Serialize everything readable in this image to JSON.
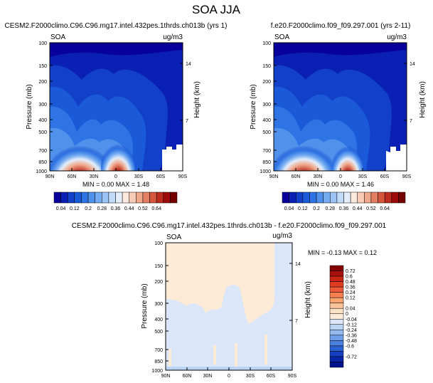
{
  "chart_data": {
    "type": "heatmap",
    "title": "SOA JJA",
    "colorbar_main": {
      "colors": [
        "#08009a",
        "#0a1fb4",
        "#1240c8",
        "#1a5ad8",
        "#2f74e4",
        "#5091ec",
        "#74abf1",
        "#9bc3f5",
        "#c2dbf8",
        "#e4eefa",
        "#fbe9de",
        "#f8cbb6",
        "#f0a88c",
        "#e37f62",
        "#d4563d",
        "#bd2d1f",
        "#9c0a0a",
        "#740000"
      ],
      "labels": [
        "0.04",
        "0.12",
        "0.2",
        "0.28",
        "0.36",
        "0.44",
        "0.52",
        "0.64"
      ]
    },
    "colorbar_diff": {
      "colors": [
        "#830000",
        "#a8100b",
        "#c82515",
        "#df3d22",
        "#ee5a37",
        "#f6804f",
        "#f9a36e",
        "#fbc39a",
        "#fde2c8",
        "#fdebd8",
        "#dbe7f8",
        "#bad4f3",
        "#95bbee",
        "#6f9fe8",
        "#4b80df",
        "#2b61d3",
        "#1440c0",
        "#0825a8",
        "#00138e"
      ],
      "labels": [
        "0.72",
        "0.6",
        "0.48",
        "0.36",
        "0.24",
        "0.12",
        "0.04",
        "0",
        "-0.04",
        "-0.12",
        "-0.24",
        "-0.36",
        "-0.48",
        "-0.6",
        "-0.72"
      ]
    },
    "panels": [
      {
        "id": "panel1",
        "title": "CESM2.F2000climo.C96.C96.mg17.intel.432pes.1thrds.ch013b (yrs 1)",
        "left_label": "SOA",
        "right_label": "ug/m3",
        "ylabel": "Pressure (mb)",
        "y2label": "Height (km)",
        "yticks": [
          "100",
          "150",
          "200",
          "300",
          "400",
          "500",
          "700",
          "850",
          "1000"
        ],
        "y2ticks": [
          "14",
          "7"
        ],
        "xticks": [
          "90N",
          "60N",
          "30N",
          "0",
          "30S",
          "60S",
          "90S"
        ],
        "minmax": "MIN =  0.00  MAX =  1.48"
      },
      {
        "id": "panel2",
        "title": "f.e20.F2000climo.f09_f09.297.001 (yrs 2-11)",
        "left_label": "SOA",
        "right_label": "ug/m3",
        "ylabel": "Pressure (mb)",
        "y2label": "Height (km)",
        "yticks": [
          "100",
          "150",
          "200",
          "300",
          "400",
          "500",
          "700",
          "850",
          "1000"
        ],
        "y2ticks": [
          "14",
          "7"
        ],
        "xticks": [
          "90N",
          "60N",
          "30N",
          "0",
          "30S",
          "60S",
          "90S"
        ],
        "minmax": "MIN =  0.00  MAX =  1.46"
      },
      {
        "id": "panel3",
        "title": "CESM2.F2000climo.C96.C96.mg17.intel.432pes.1thrds.ch013b - f.e20.F2000climo.f09_f09.297.001",
        "left_label": "SOA",
        "right_label": "ug/m3",
        "ylabel": "Pressure (mb)",
        "y2label": "Height (km)",
        "yticks": [
          "100",
          "150",
          "200",
          "300",
          "400",
          "500",
          "700",
          "850",
          "1000"
        ],
        "y2ticks": [
          "14",
          "7"
        ],
        "xticks": [
          "90N",
          "60N",
          "30N",
          "0",
          "30S",
          "60S",
          "90S"
        ],
        "minmax": "MIN = -0.13  MAX =  0.12"
      }
    ]
  }
}
